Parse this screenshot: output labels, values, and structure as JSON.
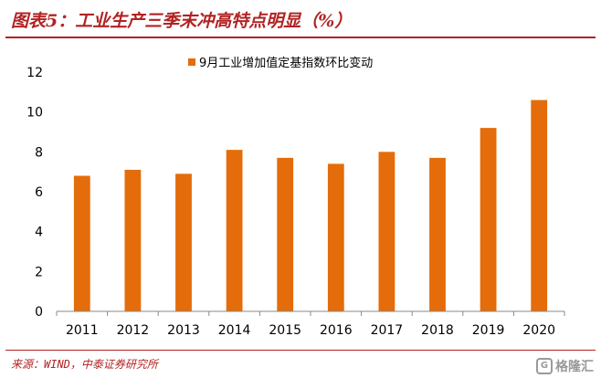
{
  "figure_title": "图表5：工业生产三季末冲高特点明显（%）",
  "source": "来源：WIND，中泰证券研究所",
  "watermark": {
    "text": "格隆汇",
    "icon": "G"
  },
  "colors": {
    "bar": "#E46C0A",
    "accent": "#B22222"
  },
  "chart_data": {
    "type": "bar",
    "categories": [
      "2011",
      "2012",
      "2013",
      "2014",
      "2015",
      "2016",
      "2017",
      "2018",
      "2019",
      "2020"
    ],
    "series": [
      {
        "name": "9月工业增加值定基指数环比变动",
        "values": [
          6.8,
          7.1,
          6.9,
          8.1,
          7.7,
          7.4,
          8.0,
          7.7,
          9.2,
          10.6
        ]
      }
    ],
    "ylim": [
      0,
      12
    ],
    "yticks": [
      0,
      2,
      4,
      6,
      8,
      10,
      12
    ],
    "legend_position": "top",
    "grid": false
  }
}
